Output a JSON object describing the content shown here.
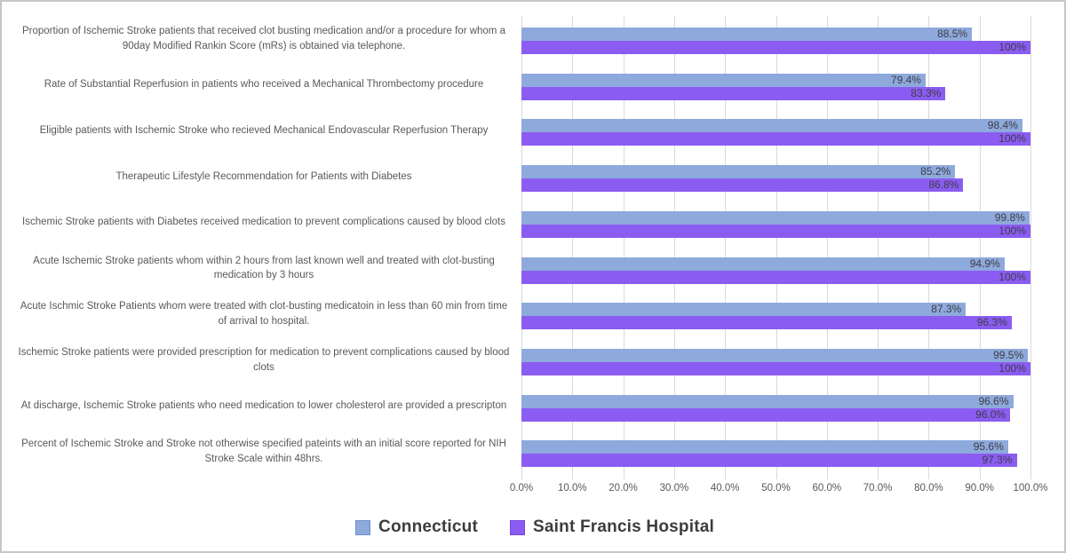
{
  "chart_data": {
    "type": "bar",
    "orientation": "horizontal",
    "title": "",
    "xlabel": "",
    "ylabel": "",
    "categories": [
      "Proportion of Ischemic Stroke patients that received clot busting medication and/or a procedure for whom a 90day Modified Rankin Score (mRs) is obtained via telephone.",
      "Rate of Substantial Reperfusion in patients who received a Mechanical Thrombectomy procedure",
      "Eligible patients with Ischemic Stroke who recieved Mechanical Endovascular Reperfusion Therapy",
      "Therapeutic Lifestyle Recommendation for Patients with Diabetes",
      "Ischemic Stroke patients with Diabetes received medication to prevent complications caused by blood clots",
      "Acute Ischemic Stroke patients whom within 2 hours from last known well and treated with clot-busting medication by 3 hours",
      "Acute Ischmic Stroke Patients whom were treated with clot-busting medicatoin in less than 60 min from time of arrival to hospital.",
      "Ischemic Stroke patients were provided prescription for medication to prevent complications caused by blood clots",
      "At discharge, Ischemic Stroke patients who need medication to lower cholesterol are provided a prescripton",
      "Percent of Ischemic Stroke and Stroke not otherwise specified pateints with an initial score reported for NIH Stroke Scale within 48hrs."
    ],
    "series": [
      {
        "name": "Connecticut",
        "color": "#8EA9DB",
        "swatch_border": "#6E8FC9",
        "values": [
          88.5,
          79.4,
          98.4,
          85.2,
          99.8,
          94.9,
          87.3,
          99.5,
          96.6,
          95.6
        ],
        "value_labels": [
          "88.5%",
          "79.4%",
          "98.4%",
          "85.2%",
          "99.8%",
          "94.9%",
          "87.3%",
          "99.5%",
          "96.6%",
          "95.6%"
        ]
      },
      {
        "name": "Saint Francis Hospital",
        "color": "#8B5CF2",
        "swatch_border": "#7647D8",
        "values": [
          100,
          83.3,
          100,
          86.8,
          100,
          100,
          96.3,
          100,
          96.0,
          97.3
        ],
        "value_labels": [
          "100%",
          "83.3%",
          "100%",
          "86.8%",
          "100%",
          "100%",
          "96.3%",
          "100%",
          "96.0%",
          "97.3%"
        ]
      }
    ],
    "x_axis": {
      "tick_labels": [
        "0.0%",
        "10.0%",
        "20.0%",
        "30.0%",
        "40.0%",
        "50.0%",
        "60.0%",
        "70.0%",
        "80.0%",
        "90.0%",
        "100.0%"
      ],
      "min": 0,
      "max": 100,
      "unit": "%"
    },
    "grid": true,
    "legend_position": "bottom",
    "colors": {
      "grid": "#d9d9d9",
      "category_text": "#595959",
      "value_text": "#3d3d46",
      "axis_text": "#595959",
      "legend_text": "#3d3d3d",
      "frame_border": "#c6c6c6",
      "background": "#ffffff"
    }
  }
}
